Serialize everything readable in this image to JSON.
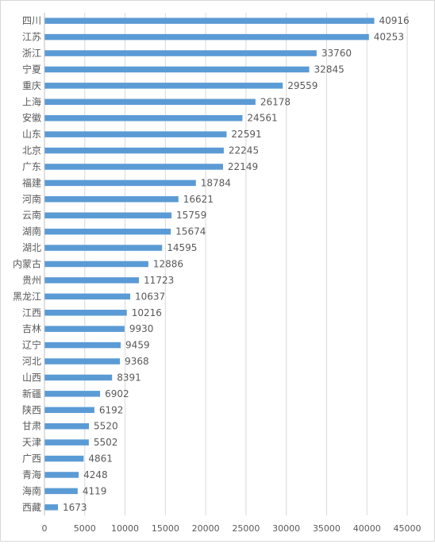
{
  "chart_data": {
    "type": "bar",
    "orientation": "horizontal",
    "categories": [
      "四川",
      "江苏",
      "浙江",
      "宁夏",
      "重庆",
      "上海",
      "安徽",
      "山东",
      "北京",
      "广东",
      "福建",
      "河南",
      "云南",
      "湖南",
      "湖北",
      "内蒙古",
      "贵州",
      "黑龙江",
      "江西",
      "吉林",
      "辽宁",
      "河北",
      "山西",
      "新疆",
      "陕西",
      "甘肃",
      "天津",
      "广西",
      "青海",
      "海南",
      "西藏"
    ],
    "values": [
      40916,
      40253,
      33760,
      32845,
      29559,
      26178,
      24561,
      22591,
      22245,
      22149,
      18784,
      16621,
      15759,
      15674,
      14595,
      12886,
      11723,
      10637,
      10216,
      9930,
      9459,
      9368,
      8391,
      6902,
      6192,
      5520,
      5502,
      4861,
      4248,
      4119,
      1673
    ],
    "xticks": [
      "0",
      "5000",
      "10000",
      "15000",
      "20000",
      "25000",
      "30000",
      "35000",
      "40000",
      "45000"
    ],
    "xlim": [
      0,
      45000
    ],
    "grid": true,
    "bar_color": "#5b9bd5",
    "grid_color": "#d9d9d9",
    "axis_color": "#bfbfbf",
    "label_color": "#595959",
    "title": "",
    "xlabel": "",
    "ylabel": ""
  }
}
